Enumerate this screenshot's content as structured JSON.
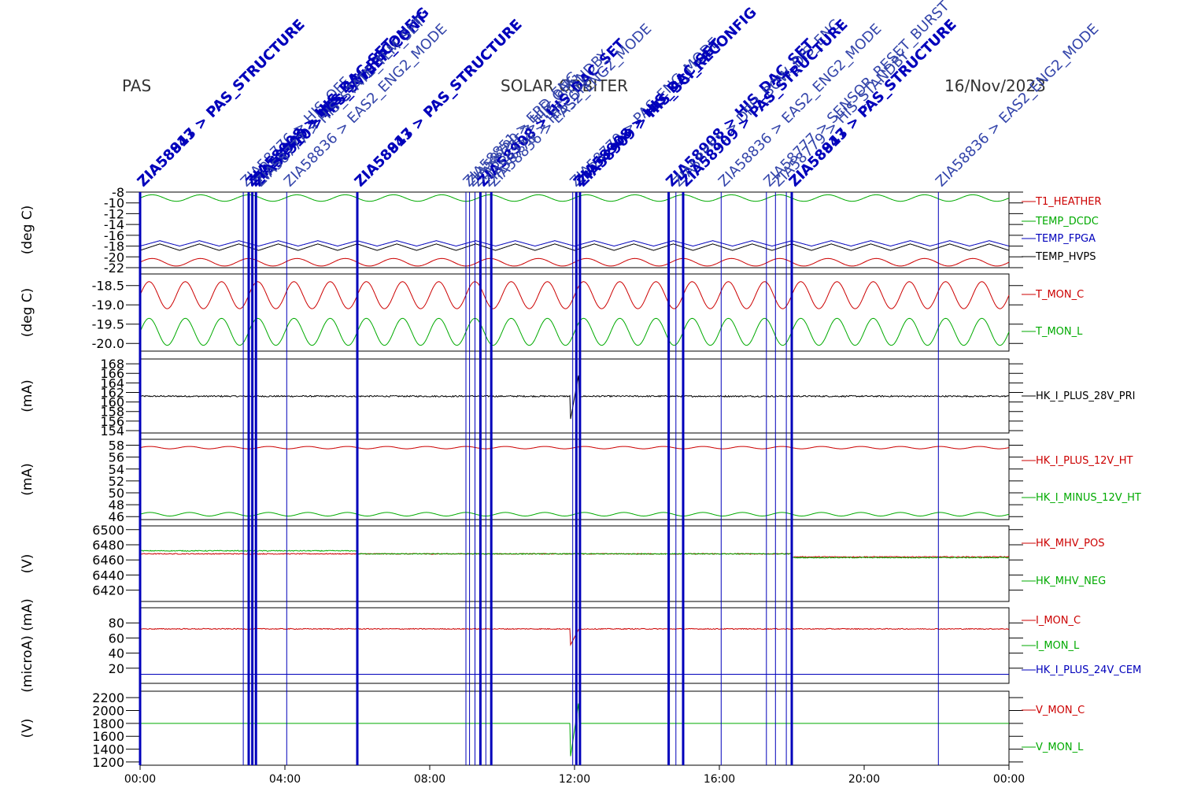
{
  "header": {
    "left": "PAS",
    "center": "SOLAR ORBITER",
    "right": "16/Nov/2023"
  },
  "colors": {
    "red": "#cc0000",
    "green": "#00aa00",
    "blue": "#0000bb",
    "black": "#000000"
  },
  "x_axis": {
    "ticks": [
      {
        "hour": 0,
        "label": "00:00"
      },
      {
        "hour": 4,
        "label": "04:00"
      },
      {
        "hour": 8,
        "label": "08:00"
      },
      {
        "hour": 12,
        "label": "12:00"
      },
      {
        "hour": 16,
        "label": "16:00"
      },
      {
        "hour": 20,
        "label": "20:00"
      },
      {
        "hour": 24,
        "label": "00:00"
      }
    ],
    "range": [
      0,
      24
    ]
  },
  "event_lines": [
    {
      "hour": 0.0,
      "bold": true
    },
    {
      "hour": 2.85,
      "bold": false
    },
    {
      "hour": 3.0,
      "bold": true
    },
    {
      "hour": 3.1,
      "bold": true
    },
    {
      "hour": 3.2,
      "bold": true
    },
    {
      "hour": 4.05,
      "bold": false
    },
    {
      "hour": 6.0,
      "bold": true
    },
    {
      "hour": 9.0,
      "bold": false
    },
    {
      "hour": 9.1,
      "bold": false
    },
    {
      "hour": 9.25,
      "bold": false
    },
    {
      "hour": 9.4,
      "bold": true
    },
    {
      "hour": 9.55,
      "bold": false
    },
    {
      "hour": 9.7,
      "bold": true
    },
    {
      "hour": 11.95,
      "bold": false
    },
    {
      "hour": 12.05,
      "bold": true
    },
    {
      "hour": 12.15,
      "bold": true
    },
    {
      "hour": 14.6,
      "bold": true
    },
    {
      "hour": 14.8,
      "bold": false
    },
    {
      "hour": 15.0,
      "bold": true
    },
    {
      "hour": 16.05,
      "bold": false
    },
    {
      "hour": 17.3,
      "bold": false
    },
    {
      "hour": 17.55,
      "bold": false
    },
    {
      "hour": 17.85,
      "bold": false
    },
    {
      "hour": 18.0,
      "bold": true
    },
    {
      "hour": 22.05,
      "bold": false
    }
  ],
  "annotations": [
    {
      "hour": 0.0,
      "text": "ZIA58843 > PAS_STRUCTURE",
      "bold": true
    },
    {
      "hour": 0.0,
      "text": "ZIA58917 > PAS_STRUCTURE",
      "bold": true
    },
    {
      "hour": 2.85,
      "text": "ZIA58776 > HIS_OFF",
      "bold": false
    },
    {
      "hour": 3.0,
      "text": "ZIA58908 > HIS_DAC_SET",
      "bold": true
    },
    {
      "hour": 3.1,
      "text": "ZIA58909 > HIS_SCI_RECONFIG",
      "bold": true
    },
    {
      "hour": 3.2,
      "text": "ZIA58910 > HIS_SWEEP_CONT",
      "bold": true
    },
    {
      "hour": 3.25,
      "text": "ZIA58777 > HIS_STATE_TLM_SET",
      "bold": false
    },
    {
      "hour": 4.05,
      "text": "ZIA58836 > EAS2_ENG2_MODE",
      "bold": false
    },
    {
      "hour": 6.0,
      "text": "ZIA58843 > PAS_STRUCTURE",
      "bold": true
    },
    {
      "hour": 6.0,
      "text": "ZIA58917 > PAS_STRUCTURE",
      "bold": true
    },
    {
      "hour": 9.0,
      "text": "ZIA58851 > EPD_ENG",
      "bold": false
    },
    {
      "hour": 9.1,
      "text": "ZIA58790 > HIS_OFF",
      "bold": false
    },
    {
      "hour": 9.25,
      "text": "ZIA58775 > HIS_STANDBY",
      "bold": false
    },
    {
      "hour": 9.4,
      "text": "ZIA58908 > HIS_DAC_SET",
      "bold": true
    },
    {
      "hour": 9.55,
      "text": "ZIA58776 > HIS_OFF",
      "bold": false
    },
    {
      "hour": 9.7,
      "text": "ZIA58836 > EAS2_ENG2_MODE",
      "bold": false
    },
    {
      "hour": 11.95,
      "text": "ZIA58779 > PAS_ENG_MODE",
      "bold": false
    },
    {
      "hour": 12.05,
      "text": "ZIA58908 > HIS_DAC_SET",
      "bold": true
    },
    {
      "hour": 12.15,
      "text": "ZIA58909 > HIS_SCI_RECONFIG",
      "bold": true
    },
    {
      "hour": 14.6,
      "text": "ZIA58908 > HIS_DAC_SET",
      "bold": true
    },
    {
      "hour": 14.8,
      "text": "ZIA58851 > DPU_BOW_DIS_ENG",
      "bold": false
    },
    {
      "hour": 15.0,
      "text": "ZIA58909 > PAS_STRUCTURE",
      "bold": true
    },
    {
      "hour": 16.05,
      "text": "ZIA58836 > EAS2_ENG2_MODE",
      "bold": false
    },
    {
      "hour": 17.3,
      "text": "ZIA58777 > SENSOR_RESET_BURST",
      "bold": false
    },
    {
      "hour": 17.55,
      "text": "ZIA58779 > HIS_STANDBY",
      "bold": false
    },
    {
      "hour": 18.0,
      "text": "ZIA58843 > PAS_STRUCTURE",
      "bold": true
    },
    {
      "hour": 18.0,
      "text": "ZIA58917 > PAS_STRUCTURE",
      "bold": true
    },
    {
      "hour": 22.05,
      "text": "ZIA58836 > EAS2_ENG2_MODE",
      "bold": false
    }
  ],
  "chart_data": [
    {
      "type": "line",
      "ylabel": "(deg C)",
      "ylim": [
        -22,
        -8
      ],
      "ticks": [
        -22,
        -20,
        -18,
        -16,
        -14,
        -12,
        -10,
        -8
      ],
      "tick_labels": [
        "-22",
        "-20",
        "-18",
        "-16",
        "-14",
        "-12",
        "-10",
        "-8"
      ],
      "series": [
        {
          "name": "T1_HEATHER",
          "color": "red",
          "base": -21.0,
          "amp": 0.7,
          "cycles": 18,
          "style": "sine"
        },
        {
          "name": "TEMP_DCDC",
          "color": "green",
          "base": -9.1,
          "amp": 0.6,
          "cycles": 18,
          "style": "sine"
        },
        {
          "name": "TEMP_FPGA",
          "color": "blue",
          "base": -17.5,
          "amp": 1.0,
          "cycles": 22,
          "style": "saw"
        },
        {
          "name": "TEMP_HVPS",
          "color": "black",
          "base": -18.2,
          "amp": 1.2,
          "cycles": 22,
          "style": "saw"
        }
      ]
    },
    {
      "type": "line",
      "ylabel": "(deg C)",
      "ylim": [
        -20.2,
        -18.2
      ],
      "ticks": [
        -20.0,
        -19.5,
        -19.0,
        -18.5
      ],
      "tick_labels": [
        "-20.0",
        "-19.5",
        "-19.0",
        "-18.5"
      ],
      "series": [
        {
          "name": "T_MON_C",
          "color": "red",
          "base": -18.75,
          "amp": 0.35,
          "cycles": 24,
          "style": "sine"
        },
        {
          "name": "T_MON_L",
          "color": "green",
          "base": -19.7,
          "amp": 0.35,
          "cycles": 24,
          "style": "sine"
        }
      ]
    },
    {
      "type": "line",
      "ylabel": "(mA)",
      "ylim": [
        153.5,
        169
      ],
      "ticks": [
        154,
        156,
        158,
        160,
        162,
        164,
        166,
        168
      ],
      "tick_labels": [
        "154",
        "156",
        "158",
        "160",
        "162",
        "164",
        "166",
        "168"
      ],
      "series": [
        {
          "name": "HK_I_PLUS_28V_PRI",
          "color": "black",
          "base": 161.2,
          "amp": 0.15,
          "cycles": 200,
          "style": "noise",
          "spike_hour": 12.0,
          "spike_values": [
            156.0,
            166.0
          ]
        }
      ]
    },
    {
      "type": "line",
      "ylabel": "(mA)",
      "ylim": [
        45.5,
        59
      ],
      "ticks": [
        46,
        48,
        50,
        52,
        54,
        56,
        58
      ],
      "tick_labels": [
        "46",
        "48",
        "50",
        "52",
        "54",
        "56",
        "58"
      ],
      "series": [
        {
          "name": "HK_I_PLUS_12V_HT",
          "color": "red",
          "base": 57.6,
          "amp": 0.2,
          "cycles": 22,
          "style": "sine"
        },
        {
          "name": "HK_I_MINUS_12V_HT",
          "color": "green",
          "base": 46.4,
          "amp": 0.3,
          "cycles": 22,
          "style": "sine"
        }
      ]
    },
    {
      "type": "line",
      "ylabel": "(V)",
      "ylim": [
        6405,
        6505
      ],
      "ticks": [
        6420,
        6440,
        6460,
        6480,
        6500
      ],
      "tick_labels": [
        "6420",
        "6440",
        "6460",
        "6480",
        "6500"
      ],
      "series": [
        {
          "name": "HK_MHV_POS",
          "color": "red",
          "base": 6468,
          "amp": 0.6,
          "cycles": 300,
          "style": "noise",
          "step_hour": 18.0,
          "step_value": 6464
        },
        {
          "name": "HK_MHV_NEG",
          "color": "green",
          "base": 6472,
          "amp": 0.6,
          "cycles": 300,
          "style": "noise",
          "step_hour": 6.0,
          "step_value": 6468,
          "step2_hour": 18.0,
          "step2_value": 6463
        }
      ]
    },
    {
      "type": "line",
      "ylabel": "(microA) (mA)",
      "ylim": [
        0,
        100
      ],
      "ticks": [
        20,
        40,
        60,
        80
      ],
      "tick_labels": [
        "20",
        "40",
        "60",
        "80"
      ],
      "series": [
        {
          "name": "I_MON_C",
          "color": "red",
          "base": 72,
          "amp": 0.6,
          "cycles": 200,
          "style": "noise",
          "spike_hour": 12.0,
          "spike_values": [
            50,
            72
          ]
        },
        {
          "name": "I_MON_L",
          "color": "green",
          "base": null
        },
        {
          "name": "HK_I_PLUS_24V_CEM",
          "color": "blue",
          "base": 12,
          "amp": 0.0,
          "cycles": 0,
          "style": "flat"
        }
      ]
    },
    {
      "type": "line",
      "ylabel": "(V)",
      "ylim": [
        1150,
        2300
      ],
      "ticks": [
        1200,
        1400,
        1600,
        1800,
        2000,
        2200
      ],
      "tick_labels": [
        "1200",
        "1400",
        "1600",
        "1800",
        "2000",
        "2200"
      ],
      "series": [
        {
          "name": "V_MON_C",
          "color": "red",
          "base": null
        },
        {
          "name": "V_MON_L",
          "color": "green",
          "base": 1800,
          "amp": 0.0,
          "cycles": 0,
          "style": "flat",
          "spike_hour": 12.0,
          "spike_values": [
            1250,
            2150
          ]
        }
      ]
    }
  ]
}
